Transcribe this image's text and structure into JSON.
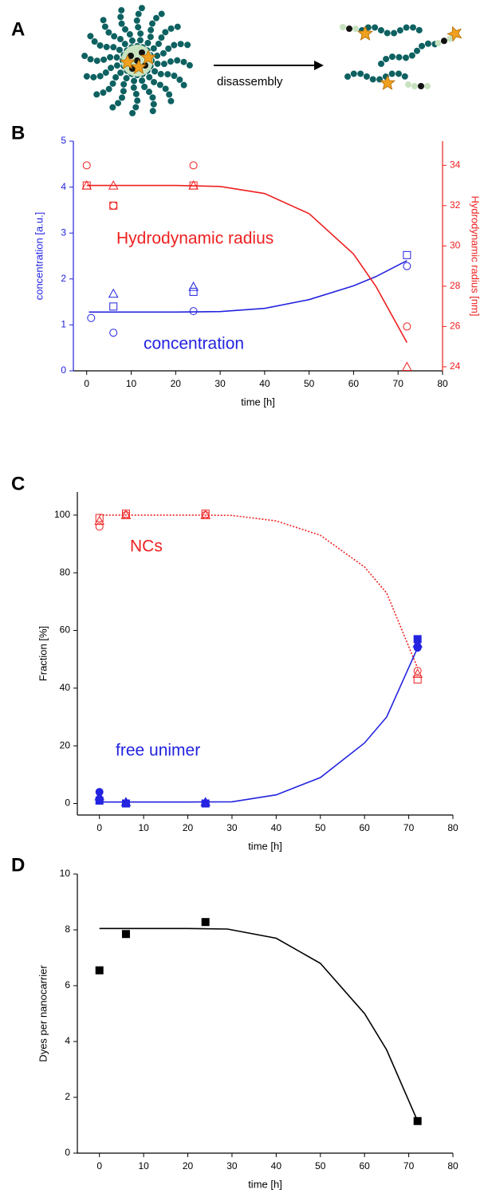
{
  "panel_a": {
    "label": "A",
    "arrow_label": "disassembly"
  },
  "chart_data": [
    {
      "type": "scatter",
      "panel_label": "B",
      "x_label": "time [h]",
      "y_label": "concentration [a.u.]",
      "y2_label": "Hydrodynamic radius [nm]",
      "y_axis_color": "#2323e0",
      "y2_axis_color": "#ee2020",
      "xlim": [
        -3,
        80
      ],
      "xticks": [
        0,
        10,
        20,
        30,
        40,
        50,
        60,
        70,
        80
      ],
      "ylim": [
        0,
        5
      ],
      "yticks": [
        0,
        1,
        2,
        3,
        4,
        5
      ],
      "y2lim": [
        23.8,
        35.2
      ],
      "y2ticks": [
        24,
        26,
        28,
        30,
        32,
        34
      ],
      "annotations": [
        {
          "text": "Hydrodynamic radius",
          "color": "#ee2020"
        },
        {
          "text": "concentration",
          "color": "#2323e0"
        }
      ],
      "series": [
        {
          "mode": "markers",
          "marker": "square",
          "filled": false,
          "color": "#2323e0",
          "x": [
            6,
            24,
            72
          ],
          "values": [
            1.4,
            1.72,
            2.52
          ]
        },
        {
          "mode": "markers",
          "marker": "triangle",
          "filled": false,
          "color": "#2323e0",
          "x": [
            6,
            24
          ],
          "values": [
            1.68,
            1.83
          ]
        },
        {
          "mode": "markers",
          "marker": "circle",
          "filled": false,
          "color": "#2323e0",
          "x": [
            1,
            6,
            24,
            72
          ],
          "values": [
            1.15,
            0.83,
            1.3,
            2.28
          ]
        },
        {
          "mode": "line",
          "color": "#2323e0",
          "x": [
            0.5,
            10,
            20,
            30,
            40,
            50,
            60,
            65,
            72
          ],
          "values": [
            1.28,
            1.28,
            1.28,
            1.29,
            1.36,
            1.55,
            1.85,
            2.05,
            2.4
          ]
        },
        {
          "mode": "markers",
          "marker": "square",
          "filled": false,
          "color": "#ee2020",
          "axis": "y2",
          "x": [
            0,
            6,
            24
          ],
          "values": [
            33,
            32,
            33
          ]
        },
        {
          "mode": "markers",
          "marker": "triangle",
          "filled": false,
          "color": "#ee2020",
          "axis": "y2",
          "x": [
            0,
            6,
            24,
            72
          ],
          "values": [
            33,
            33,
            33,
            24
          ]
        },
        {
          "mode": "markers",
          "marker": "circle",
          "filled": false,
          "color": "#ee2020",
          "axis": "y2",
          "x": [
            0,
            6,
            24,
            72
          ],
          "values": [
            34,
            32,
            34,
            26
          ]
        },
        {
          "mode": "line",
          "color": "#ee2020",
          "axis": "y2",
          "x": [
            0,
            10,
            20,
            30,
            40,
            50,
            60,
            65,
            72
          ],
          "values": [
            33,
            33,
            33,
            32.95,
            32.6,
            31.6,
            29.6,
            28,
            25.2
          ]
        }
      ]
    },
    {
      "type": "scatter",
      "panel_label": "C",
      "x_label": "time [h]",
      "y_label": "Fraction [%]",
      "xlim": [
        -5,
        80
      ],
      "xticks": [
        0,
        10,
        20,
        30,
        40,
        50,
        60,
        70,
        80
      ],
      "ylim": [
        -4,
        108
      ],
      "yticks": [
        0,
        20,
        40,
        60,
        80,
        100
      ],
      "annotations": [
        {
          "text": "NCs",
          "color": "#ee2020"
        },
        {
          "text": "free unimer",
          "color": "#2323e0"
        }
      ],
      "series": [
        {
          "mode": "markers",
          "marker": "circle",
          "filled": false,
          "color": "#ee2020",
          "x": [
            0,
            6,
            24,
            72
          ],
          "values": [
            96,
            100,
            100,
            46
          ]
        },
        {
          "mode": "markers",
          "marker": "square",
          "filled": false,
          "color": "#ee2020",
          "x": [
            0,
            6,
            24,
            72
          ],
          "values": [
            99,
            100.5,
            100.5,
            43
          ]
        },
        {
          "mode": "markers",
          "marker": "triangle",
          "filled": false,
          "color": "#ee2020",
          "x": [
            0,
            6,
            24,
            72
          ],
          "values": [
            98,
            100,
            100,
            45
          ]
        },
        {
          "mode": "line",
          "dashed": true,
          "color": "#ee2020",
          "x": [
            0,
            10,
            20,
            30,
            40,
            50,
            60,
            65,
            72
          ],
          "values": [
            100,
            100,
            100,
            99.9,
            98,
            93,
            82,
            73,
            47
          ]
        },
        {
          "mode": "markers",
          "marker": "circle",
          "filled": true,
          "color": "#2323e0",
          "x": [
            0,
            6,
            24,
            72
          ],
          "values": [
            4,
            0,
            0,
            54
          ]
        },
        {
          "mode": "markers",
          "marker": "square",
          "filled": true,
          "color": "#2323e0",
          "x": [
            0,
            6,
            24,
            72
          ],
          "values": [
            1,
            0,
            0,
            57
          ]
        },
        {
          "mode": "markers",
          "marker": "triangle",
          "filled": true,
          "color": "#2323e0",
          "x": [
            0,
            6,
            24,
            72
          ],
          "values": [
            2.5,
            0.5,
            0.5,
            55.5
          ]
        },
        {
          "mode": "line",
          "color": "#2323e0",
          "x": [
            0,
            10,
            20,
            30,
            40,
            50,
            60,
            65,
            72
          ],
          "values": [
            0.5,
            0.5,
            0.5,
            0.6,
            3,
            9,
            21,
            30,
            54
          ]
        }
      ]
    },
    {
      "type": "scatter",
      "panel_label": "D",
      "x_label": "time [h]",
      "y_label": "Dyes per nanocarrier",
      "xlim": [
        -5,
        80
      ],
      "xticks": [
        0,
        10,
        20,
        30,
        40,
        50,
        60,
        70,
        80
      ],
      "ylim": [
        0,
        10
      ],
      "yticks": [
        0,
        2,
        4,
        6,
        8,
        10
      ],
      "annotations": [],
      "series": [
        {
          "mode": "markers",
          "marker": "square",
          "filled": true,
          "color": "#000000",
          "x": [
            0,
            6,
            24,
            72
          ],
          "values": [
            6.55,
            7.85,
            8.28,
            1.15
          ]
        },
        {
          "mode": "line",
          "color": "#000000",
          "x": [
            0,
            10,
            20,
            29,
            40,
            50,
            60,
            65,
            72
          ],
          "values": [
            8.05,
            8.05,
            8.05,
            8.03,
            7.7,
            6.8,
            5,
            3.7,
            1.15
          ]
        }
      ]
    }
  ]
}
